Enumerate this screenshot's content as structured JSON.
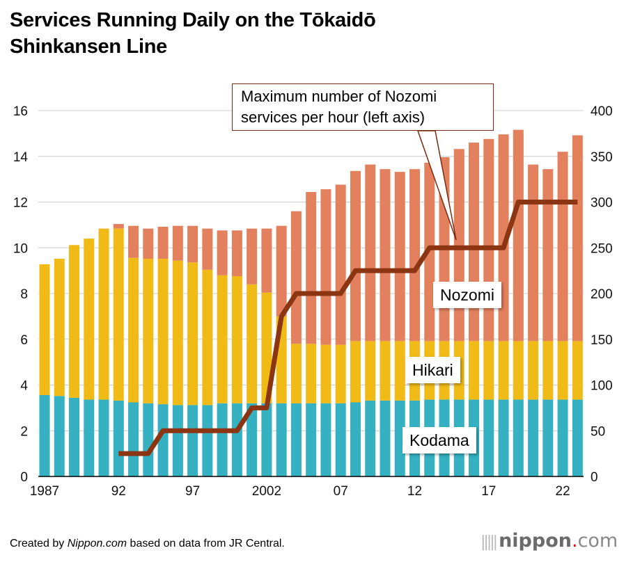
{
  "title_line1": "Services Running Daily on the Tōkaidō",
  "title_line2": "Shinkansen Line",
  "footer": {
    "prefix": "Created by ",
    "site": "Nippon.com",
    "suffix": " based on data from JR Central."
  },
  "logo": {
    "name": "nippon",
    "dot": ".",
    "tld": "com"
  },
  "chart_data": {
    "type": "bar",
    "subtype": "stacked bar with line overlay",
    "title": "Services Running Daily on the Tōkaidō Shinkansen Line",
    "years": [
      1987,
      1988,
      1989,
      1990,
      1991,
      1992,
      1993,
      1994,
      1995,
      1996,
      1997,
      1998,
      1999,
      2000,
      2001,
      2002,
      2003,
      2004,
      2005,
      2006,
      2007,
      2008,
      2009,
      2010,
      2011,
      2012,
      2013,
      2014,
      2015,
      2016,
      2017,
      2018,
      2019,
      2020,
      2021,
      2022,
      2023
    ],
    "x_tick_labels": [
      {
        "year": 1987,
        "label": "1987"
      },
      {
        "year": 1992,
        "label": "92"
      },
      {
        "year": 1997,
        "label": "97"
      },
      {
        "year": 2002,
        "label": "2002"
      },
      {
        "year": 2007,
        "label": "07"
      },
      {
        "year": 2012,
        "label": "12"
      },
      {
        "year": 2017,
        "label": "17"
      },
      {
        "year": 2022,
        "label": "22"
      }
    ],
    "series": [
      {
        "name": "Kodama",
        "color": "#35b1c1",
        "axis": "right",
        "values": [
          89,
          88,
          86,
          84,
          84,
          83,
          81,
          80,
          79,
          78,
          78,
          78,
          80,
          80,
          80,
          80,
          80,
          80,
          80,
          80,
          80,
          81,
          83,
          83,
          83,
          83,
          84,
          84,
          84,
          84,
          84,
          84,
          84,
          84,
          84,
          84,
          84
        ]
      },
      {
        "name": "Hikari",
        "color": "#f1bb17",
        "axis": "right",
        "values": [
          143,
          150,
          167,
          176,
          187,
          188,
          158,
          158,
          159,
          158,
          156,
          148,
          140,
          139,
          130,
          121,
          95,
          65,
          65,
          64,
          64,
          67,
          65,
          65,
          65,
          65,
          64,
          64,
          64,
          64,
          64,
          64,
          64,
          64,
          64,
          64,
          64
        ]
      },
      {
        "name": "Nozomi",
        "color": "#e3805e",
        "axis": "right",
        "values": [
          0,
          0,
          0,
          0,
          0,
          5,
          35,
          33,
          35,
          38,
          40,
          45,
          49,
          50,
          61,
          70,
          99,
          145,
          166,
          170,
          175,
          186,
          193,
          188,
          185,
          188,
          195,
          201,
          210,
          217,
          221,
          226,
          231,
          193,
          188,
          207,
          225
        ]
      }
    ],
    "line": {
      "name": "Maximum number of Nozomi services per hour (left axis)",
      "color": "#8b3512",
      "axis": "left",
      "years": [
        1992,
        1993,
        1994,
        1995,
        1996,
        1997,
        1998,
        1999,
        2000,
        2001,
        2002,
        2003,
        2004,
        2005,
        2006,
        2007,
        2008,
        2009,
        2010,
        2011,
        2012,
        2013,
        2014,
        2015,
        2016,
        2017,
        2018,
        2019,
        2020,
        2021,
        2022,
        2023
      ],
      "values": [
        1,
        1,
        1,
        2,
        2,
        2,
        2,
        2,
        2,
        3,
        3,
        7,
        8,
        8,
        8,
        8,
        9,
        9,
        9,
        9,
        9,
        10,
        10,
        10,
        10,
        10,
        10,
        12,
        12,
        12,
        12,
        12
      ]
    },
    "left_axis": {
      "range": [
        0,
        16
      ],
      "ticks": [
        "0",
        "2",
        "4",
        "6",
        "8",
        "10",
        "12",
        "14",
        "16"
      ]
    },
    "right_axis": {
      "range": [
        0,
        400
      ],
      "ticks": [
        "0",
        "50",
        "100",
        "150",
        "200",
        "250",
        "300",
        "350",
        "400"
      ]
    },
    "callout": [
      "Maximum number of Nozomi",
      "services per hour (left axis)"
    ],
    "labels": {
      "nozomi": "Nozomi",
      "hikari": "Hikari",
      "kodama": "Kodama"
    },
    "grid": true
  }
}
